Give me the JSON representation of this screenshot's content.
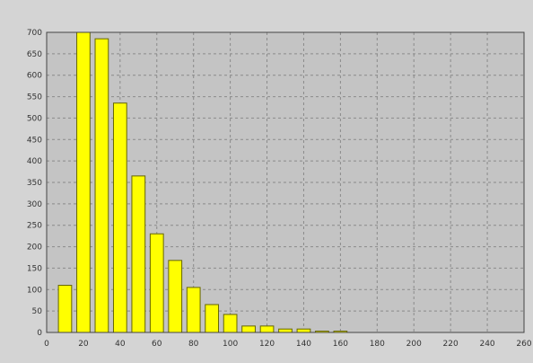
{
  "chart_data": {
    "type": "bar",
    "title": "",
    "xlabel": "",
    "ylabel": "",
    "x": [
      10,
      20,
      30,
      40,
      50,
      60,
      70,
      80,
      90,
      100,
      110,
      120,
      130,
      140,
      150,
      160,
      170,
      180,
      190,
      200
    ],
    "values": [
      110,
      700,
      685,
      535,
      365,
      230,
      168,
      105,
      65,
      42,
      15,
      15,
      8,
      8,
      3,
      3,
      0,
      0,
      0,
      0
    ],
    "xlim": [
      0,
      260
    ],
    "ylim": [
      0,
      700
    ],
    "xticks": [
      "0",
      "20",
      "40",
      "60",
      "80",
      "100",
      "120",
      "140",
      "160",
      "180",
      "200",
      "220",
      "240",
      "260"
    ],
    "yticks": [
      "0",
      "50",
      "100",
      "150",
      "200",
      "250",
      "300",
      "350",
      "400",
      "450",
      "500",
      "550",
      "600",
      "650",
      "700"
    ],
    "grid": true,
    "colors": {
      "bar": "#ffff00",
      "bar_edge": "#666600",
      "plot_bg": "#c4c4c4",
      "grid": "#8a8a8a",
      "frame": "#444444"
    }
  }
}
